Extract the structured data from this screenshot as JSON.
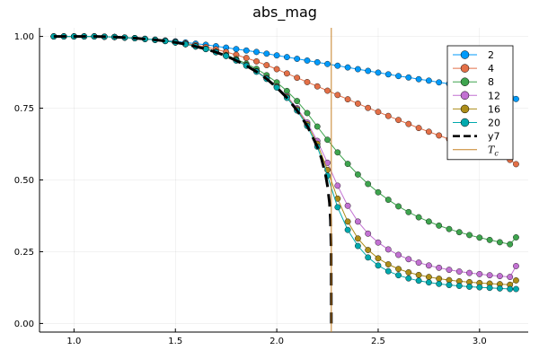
{
  "chart_data": {
    "type": "line",
    "title": "abs_mag",
    "xlabel": "",
    "ylabel": "",
    "xlim": [
      0.83,
      3.24
    ],
    "ylim": [
      -0.03,
      1.03
    ],
    "xticks": [
      1.0,
      1.5,
      2.0,
      2.5,
      3.0
    ],
    "xtick_labels": [
      "1.0",
      "1.5",
      "2.0",
      "2.5",
      "3.0"
    ],
    "yticks": [
      0.0,
      0.25,
      0.5,
      0.75,
      1.0
    ],
    "ytick_labels": [
      "0.00",
      "0.25",
      "0.50",
      "0.75",
      "1.00"
    ],
    "grid": true,
    "legend_position": "top-right",
    "x": [
      0.9,
      0.95,
      1.0,
      1.05,
      1.1,
      1.15,
      1.2,
      1.25,
      1.3,
      1.35,
      1.4,
      1.45,
      1.5,
      1.55,
      1.6,
      1.65,
      1.7,
      1.75,
      1.8,
      1.85,
      1.9,
      1.95,
      2.0,
      2.05,
      2.1,
      2.15,
      2.2,
      2.25,
      2.3,
      2.35,
      2.4,
      2.45,
      2.5,
      2.55,
      2.6,
      2.65,
      2.7,
      2.75,
      2.8,
      2.85,
      2.9,
      2.95,
      3.0,
      3.05,
      3.1,
      3.15,
      3.18
    ],
    "series": [
      {
        "name": "2",
        "color": "#009AFA",
        "values": [
          1.0,
          1.0,
          1.0,
          1.0,
          1.0,
          0.999,
          0.998,
          0.996,
          0.994,
          0.992,
          0.989,
          0.986,
          0.983,
          0.979,
          0.975,
          0.971,
          0.966,
          0.961,
          0.956,
          0.951,
          0.946,
          0.94,
          0.934,
          0.928,
          0.922,
          0.916,
          0.91,
          0.904,
          0.898,
          0.892,
          0.886,
          0.88,
          0.874,
          0.868,
          0.862,
          0.857,
          0.851,
          0.846,
          0.84,
          0.835,
          0.83,
          0.825,
          0.82,
          0.815,
          0.81,
          0.805,
          0.782
        ]
      },
      {
        "name": "4",
        "color": "#E36F47",
        "values": [
          1.0,
          1.0,
          1.0,
          1.0,
          1.0,
          0.999,
          0.998,
          0.996,
          0.994,
          0.991,
          0.988,
          0.985,
          0.981,
          0.976,
          0.97,
          0.963,
          0.955,
          0.946,
          0.936,
          0.925,
          0.913,
          0.9,
          0.886,
          0.871,
          0.856,
          0.841,
          0.826,
          0.811,
          0.796,
          0.781,
          0.766,
          0.751,
          0.737,
          0.723,
          0.709,
          0.695,
          0.681,
          0.668,
          0.655,
          0.642,
          0.629,
          0.617,
          0.605,
          0.593,
          0.581,
          0.57,
          0.555
        ]
      },
      {
        "name": "8",
        "color": "#3EA44E",
        "values": [
          1.0,
          1.0,
          1.0,
          1.0,
          1.0,
          0.999,
          0.998,
          0.996,
          0.994,
          0.991,
          0.988,
          0.984,
          0.979,
          0.973,
          0.966,
          0.957,
          0.947,
          0.935,
          0.921,
          0.905,
          0.887,
          0.865,
          0.84,
          0.81,
          0.775,
          0.733,
          0.686,
          0.64,
          0.596,
          0.556,
          0.519,
          0.486,
          0.457,
          0.431,
          0.408,
          0.388,
          0.37,
          0.355,
          0.341,
          0.329,
          0.318,
          0.308,
          0.299,
          0.291,
          0.283,
          0.276,
          0.3
        ]
      },
      {
        "name": "12",
        "color": "#C271D2",
        "values": [
          1.0,
          1.0,
          1.0,
          1.0,
          1.0,
          0.999,
          0.998,
          0.996,
          0.994,
          0.991,
          0.988,
          0.984,
          0.979,
          0.973,
          0.965,
          0.956,
          0.946,
          0.933,
          0.918,
          0.9,
          0.879,
          0.855,
          0.826,
          0.792,
          0.75,
          0.7,
          0.636,
          0.56,
          0.48,
          0.41,
          0.355,
          0.313,
          0.282,
          0.258,
          0.239,
          0.224,
          0.212,
          0.202,
          0.194,
          0.187,
          0.181,
          0.176,
          0.172,
          0.168,
          0.165,
          0.162,
          0.2
        ]
      },
      {
        "name": "16",
        "color": "#AC8D18",
        "values": [
          1.0,
          1.0,
          1.0,
          1.0,
          1.0,
          0.999,
          0.998,
          0.996,
          0.994,
          0.991,
          0.988,
          0.984,
          0.979,
          0.973,
          0.965,
          0.956,
          0.945,
          0.932,
          0.917,
          0.899,
          0.878,
          0.853,
          0.824,
          0.789,
          0.746,
          0.694,
          0.626,
          0.535,
          0.435,
          0.355,
          0.296,
          0.256,
          0.227,
          0.206,
          0.19,
          0.178,
          0.169,
          0.162,
          0.156,
          0.151,
          0.147,
          0.144,
          0.141,
          0.139,
          0.137,
          0.135,
          0.15
        ]
      },
      {
        "name": "20",
        "color": "#00A9AD",
        "values": [
          1.0,
          1.0,
          1.0,
          1.0,
          1.0,
          0.999,
          0.998,
          0.996,
          0.994,
          0.991,
          0.988,
          0.984,
          0.979,
          0.973,
          0.965,
          0.956,
          0.945,
          0.932,
          0.916,
          0.898,
          0.877,
          0.852,
          0.822,
          0.786,
          0.742,
          0.688,
          0.616,
          0.515,
          0.405,
          0.326,
          0.27,
          0.23,
          0.202,
          0.182,
          0.168,
          0.157,
          0.149,
          0.143,
          0.138,
          0.134,
          0.131,
          0.128,
          0.126,
          0.124,
          0.122,
          0.12,
          0.12
        ]
      }
    ],
    "exact_curve": {
      "name": "y7",
      "color": "#000000",
      "x": [
        0.9,
        0.95,
        1.0,
        1.05,
        1.1,
        1.15,
        1.2,
        1.25,
        1.3,
        1.35,
        1.4,
        1.45,
        1.5,
        1.55,
        1.6,
        1.65,
        1.7,
        1.75,
        1.8,
        1.85,
        1.9,
        1.95,
        2.0,
        2.05,
        2.1,
        2.15,
        2.2,
        2.22,
        2.24,
        2.25,
        2.26,
        2.265,
        2.268,
        2.269
      ],
      "values": [
        1.0,
        1.0,
        1.0,
        1.0,
        1.0,
        0.999,
        0.998,
        0.996,
        0.994,
        0.991,
        0.988,
        0.984,
        0.979,
        0.973,
        0.965,
        0.956,
        0.945,
        0.932,
        0.916,
        0.898,
        0.877,
        0.852,
        0.822,
        0.786,
        0.742,
        0.688,
        0.616,
        0.575,
        0.52,
        0.48,
        0.42,
        0.36,
        0.26,
        0.0
      ]
    },
    "critical_temperature": {
      "name": "T_c",
      "label_base": "T",
      "label_subscript": "c",
      "color": "#C68125",
      "x": 2.269
    }
  }
}
